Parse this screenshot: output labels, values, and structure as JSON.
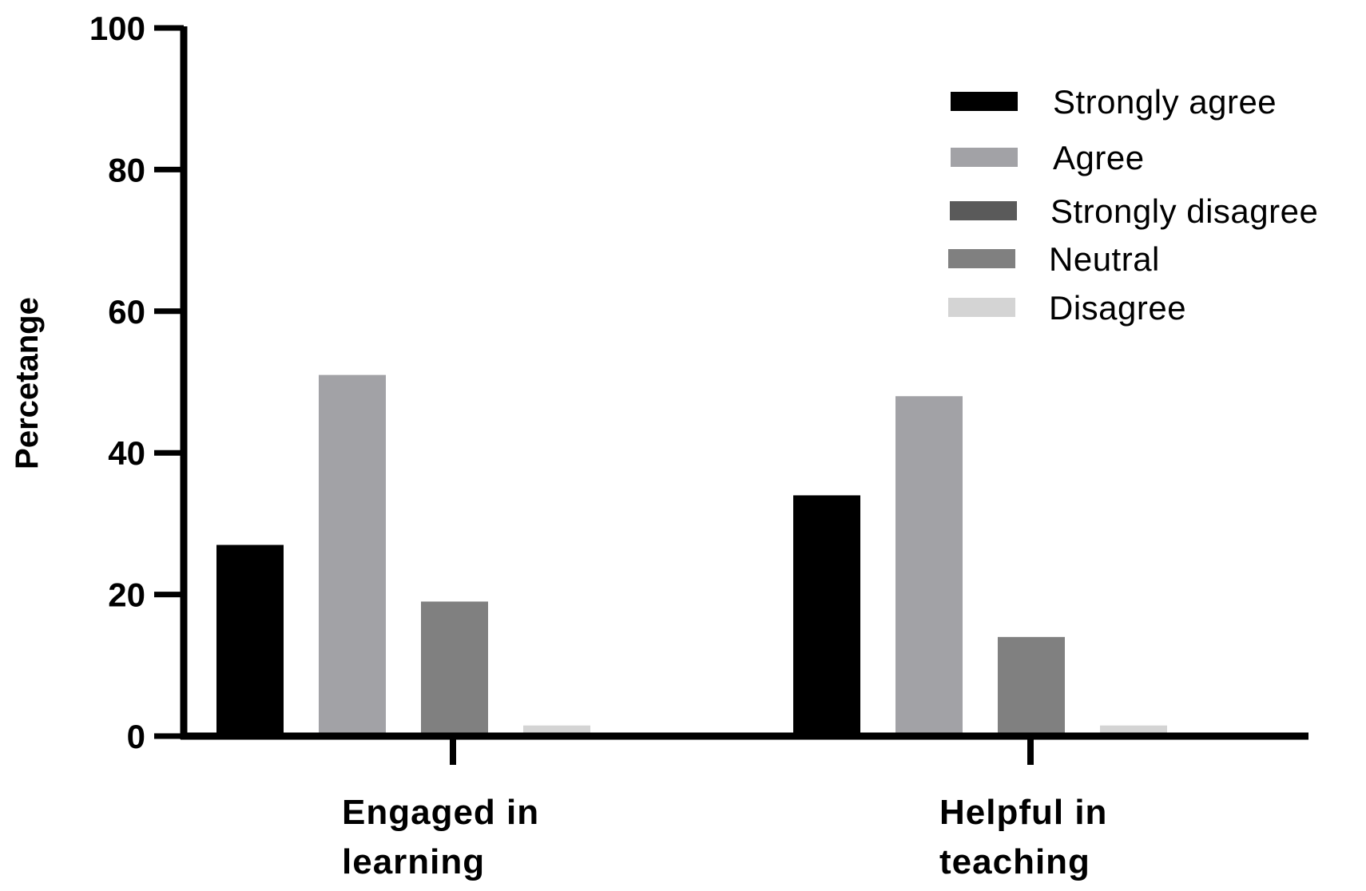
{
  "chart_data": {
    "type": "bar",
    "title": "",
    "xlabel": "",
    "ylabel": "Percetange",
    "ylim": [
      0,
      100
    ],
    "yticks": [
      0,
      20,
      40,
      60,
      80,
      100
    ],
    "grid": false,
    "legend_position": "top-right",
    "categories": [
      {
        "line1": "Engaged in",
        "line2": "learning"
      },
      {
        "line1": "Helpful in",
        "line2": "teaching"
      }
    ],
    "legend_order": [
      "Strongly agree",
      "Agree",
      "Strongly disagree",
      "Neutral",
      "Disagree"
    ],
    "bar_order": [
      "Strongly agree",
      "Agree",
      "Neutral",
      "Disagree"
    ],
    "series": [
      {
        "name": "Strongly agree",
        "color": "#000000",
        "values": [
          27,
          34
        ]
      },
      {
        "name": "Agree",
        "color": "#a2a2a6",
        "values": [
          51,
          48
        ]
      },
      {
        "name": "Strongly disagree",
        "color": "#5a5a5a",
        "values": [
          0,
          0
        ]
      },
      {
        "name": "Neutral",
        "color": "#808080",
        "values": [
          19,
          14
        ]
      },
      {
        "name": "Disagree",
        "color": "#d4d4d4",
        "values": [
          1.5,
          1.5
        ]
      }
    ]
  }
}
